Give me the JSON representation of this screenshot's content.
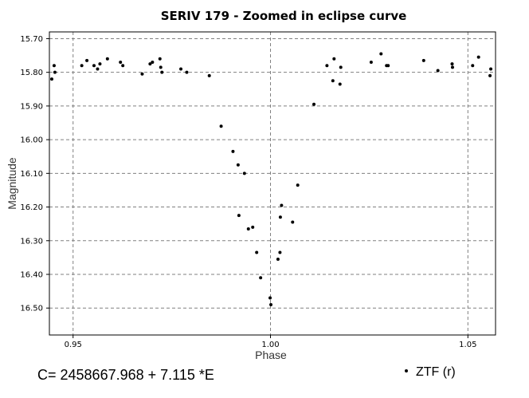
{
  "chart_data": {
    "type": "scatter",
    "title": "SERIV 179 - Zoomed in eclipse curve",
    "xlabel": "Phase",
    "ylabel": "Magnitude",
    "xlim": [
      0.944,
      1.057
    ],
    "ylim": [
      15.68,
      16.58
    ],
    "y_inverted": true,
    "grid": true,
    "x_ticks": [
      0.95,
      1.0,
      1.05
    ],
    "x_tick_labels": [
      "0.95",
      "1.00",
      "1.05"
    ],
    "y_ticks": [
      15.7,
      15.8,
      15.9,
      16.0,
      16.1,
      16.2,
      16.3,
      16.4,
      16.5
    ],
    "y_tick_labels": [
      "15.70",
      "15.80",
      "15.90",
      "16.00",
      "16.10",
      "16.20",
      "16.30",
      "16.40",
      "16.50"
    ],
    "legend_position": "bottom-right",
    "marker_color": "#000000",
    "series": [
      {
        "name": "ZTF (r)",
        "x": [
          0.9446,
          0.9452,
          0.9454,
          0.9522,
          0.9535,
          0.9553,
          0.9562,
          0.9568,
          0.9587,
          0.962,
          0.9626,
          0.9675,
          0.9695,
          0.9701,
          0.972,
          0.9722,
          0.9725,
          0.9773,
          0.9788,
          0.9845,
          0.9875,
          0.9905,
          0.9918,
          0.992,
          0.9934,
          0.9944,
          0.9955,
          0.9965,
          0.9975,
          0.9999,
          1.0001,
          1.0019,
          1.0024,
          1.0025,
          1.0028,
          1.0056,
          1.0069,
          1.011,
          1.0143,
          1.0158,
          1.0161,
          1.0176,
          1.0178,
          1.0255,
          1.028,
          1.0294,
          1.0298,
          1.0388,
          1.0424,
          1.046,
          1.0461,
          1.0512,
          1.0527,
          1.0556,
          1.0558
        ],
        "y": [
          15.82,
          15.78,
          15.8,
          15.78,
          15.765,
          15.78,
          15.79,
          15.775,
          15.76,
          15.77,
          15.78,
          15.805,
          15.775,
          15.77,
          15.76,
          15.785,
          15.8,
          15.79,
          15.8,
          15.81,
          15.96,
          16.035,
          16.075,
          16.225,
          16.1,
          16.265,
          16.26,
          16.335,
          16.41,
          16.47,
          16.49,
          16.355,
          16.335,
          16.23,
          16.195,
          16.245,
          16.135,
          15.895,
          15.78,
          15.825,
          15.76,
          15.835,
          15.785,
          15.77,
          15.745,
          15.78,
          15.78,
          15.765,
          15.795,
          15.775,
          15.785,
          15.78,
          15.755,
          15.81,
          15.79
        ]
      }
    ]
  },
  "footer": {
    "formula": "C= 2458667.968 + 7.115 *E"
  }
}
